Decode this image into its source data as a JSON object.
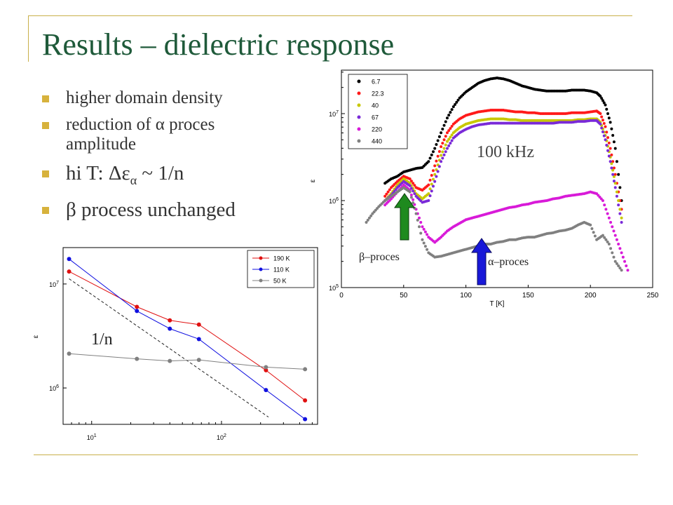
{
  "slide": {
    "title": "Results – dielectric response",
    "bullets": [
      {
        "lines": [
          "higher domain density"
        ]
      },
      {
        "lines": [
          "reduction of α proces",
          "amplitude"
        ]
      },
      {
        "lines": [
          "hi T: Δε",
          " ~ 1/n"
        ],
        "sub": "α"
      },
      {
        "lines": [
          "β process unchanged"
        ]
      }
    ]
  },
  "annotations": {
    "freq": "100 kHz",
    "beta": "β–proces",
    "alpha": "α–proces",
    "inv_n": "1/n"
  },
  "colors": {
    "title": "#1f5a3a",
    "bullet": "#d7b23c",
    "rule": "#c8b04a",
    "beta_arrow": "#1e8a1e",
    "alpha_arrow": "#1818d8"
  },
  "chart_data": [
    {
      "type": "scatter",
      "title": "",
      "xlabel": "T [K]",
      "ylabel": "ε",
      "xlim": [
        0,
        250
      ],
      "ylim_log10": [
        5,
        7.5
      ],
      "xticks": [
        "0",
        "50",
        "100",
        "150",
        "200",
        "250"
      ],
      "yticks": [
        {
          "label": "10",
          "exp": "5",
          "value": 5
        },
        {
          "label": "10",
          "exp": "6",
          "value": 6
        },
        {
          "label": "10",
          "exp": "7",
          "value": 7
        }
      ],
      "legend_position": "top-left",
      "series": [
        {
          "name": "6.7",
          "color": "#000000",
          "x": [
            35,
            40,
            45,
            50,
            55,
            60,
            65,
            70,
            75,
            80,
            85,
            90,
            95,
            100,
            105,
            110,
            115,
            120,
            125,
            130,
            135,
            140,
            145,
            150,
            155,
            160,
            165,
            170,
            175,
            180,
            185,
            190,
            195,
            200,
            205,
            208,
            212,
            216,
            220,
            225
          ],
          "log10": [
            6.2,
            6.25,
            6.28,
            6.33,
            6.35,
            6.37,
            6.38,
            6.45,
            6.6,
            6.78,
            6.95,
            7.08,
            7.18,
            7.25,
            7.3,
            7.35,
            7.38,
            7.4,
            7.41,
            7.4,
            7.38,
            7.35,
            7.32,
            7.3,
            7.28,
            7.27,
            7.26,
            7.26,
            7.26,
            7.26,
            7.27,
            7.27,
            7.27,
            7.26,
            7.24,
            7.2,
            7.1,
            6.9,
            6.6,
            6.0
          ]
        },
        {
          "name": "22.3",
          "color": "#ff1a1a",
          "x": [
            35,
            40,
            45,
            50,
            55,
            60,
            65,
            70,
            75,
            80,
            85,
            90,
            95,
            100,
            105,
            110,
            115,
            120,
            125,
            130,
            135,
            140,
            145,
            150,
            155,
            160,
            165,
            170,
            175,
            180,
            185,
            190,
            195,
            200,
            205,
            208,
            212,
            216,
            220,
            225
          ],
          "log10": [
            6.05,
            6.15,
            6.22,
            6.28,
            6.25,
            6.15,
            6.12,
            6.18,
            6.4,
            6.62,
            6.78,
            6.88,
            6.94,
            6.98,
            7.0,
            7.02,
            7.03,
            7.04,
            7.04,
            7.04,
            7.03,
            7.02,
            7.02,
            7.01,
            7.01,
            7.0,
            7.0,
            7.0,
            7.0,
            7.0,
            7.01,
            7.01,
            7.01,
            7.02,
            7.03,
            7.0,
            6.85,
            6.6,
            6.3,
            5.9
          ]
        },
        {
          "name": "40",
          "color": "#c8c800",
          "x": [
            35,
            40,
            45,
            50,
            55,
            60,
            65,
            70,
            75,
            80,
            85,
            90,
            95,
            100,
            105,
            110,
            115,
            120,
            125,
            130,
            135,
            140,
            145,
            150,
            155,
            160,
            165,
            170,
            175,
            180,
            185,
            190,
            195,
            200,
            205,
            208,
            212,
            216,
            220,
            225
          ],
          "log10": [
            6.0,
            6.08,
            6.18,
            6.25,
            6.2,
            6.08,
            6.02,
            6.08,
            6.3,
            6.52,
            6.68,
            6.78,
            6.84,
            6.88,
            6.9,
            6.92,
            6.93,
            6.94,
            6.94,
            6.94,
            6.93,
            6.93,
            6.92,
            6.92,
            6.92,
            6.92,
            6.92,
            6.92,
            6.92,
            6.92,
            6.92,
            6.93,
            6.93,
            6.94,
            6.94,
            6.9,
            6.75,
            6.5,
            6.2,
            5.8
          ]
        },
        {
          "name": "67",
          "color": "#7a2ad8",
          "x": [
            35,
            40,
            45,
            50,
            55,
            60,
            65,
            70,
            75,
            80,
            85,
            90,
            95,
            100,
            105,
            110,
            115,
            120,
            125,
            130,
            135,
            140,
            145,
            150,
            155,
            160,
            165,
            170,
            175,
            180,
            185,
            190,
            195,
            200,
            205,
            208,
            212,
            216,
            220,
            225
          ],
          "log10": [
            6.0,
            6.06,
            6.15,
            6.22,
            6.17,
            6.05,
            5.98,
            6.0,
            6.22,
            6.45,
            6.6,
            6.72,
            6.78,
            6.82,
            6.85,
            6.87,
            6.88,
            6.89,
            6.89,
            6.89,
            6.89,
            6.89,
            6.89,
            6.89,
            6.89,
            6.89,
            6.89,
            6.89,
            6.9,
            6.9,
            6.9,
            6.91,
            6.91,
            6.92,
            6.92,
            6.88,
            6.7,
            6.45,
            6.15,
            5.75
          ]
        },
        {
          "name": "220",
          "color": "#d81ad8",
          "x": [
            35,
            40,
            45,
            50,
            55,
            60,
            65,
            70,
            75,
            80,
            85,
            90,
            95,
            100,
            105,
            110,
            115,
            120,
            125,
            130,
            135,
            140,
            145,
            150,
            155,
            160,
            165,
            170,
            175,
            180,
            185,
            190,
            195,
            200,
            205,
            210,
            215,
            220,
            225,
            230
          ],
          "log10": [
            5.95,
            6.02,
            6.1,
            6.18,
            6.12,
            5.9,
            5.7,
            5.58,
            5.52,
            5.58,
            5.65,
            5.7,
            5.74,
            5.78,
            5.8,
            5.82,
            5.84,
            5.86,
            5.88,
            5.9,
            5.92,
            5.93,
            5.95,
            5.96,
            5.98,
            5.99,
            6.0,
            6.02,
            6.03,
            6.05,
            6.06,
            6.07,
            6.08,
            6.1,
            6.08,
            6.0,
            5.8,
            5.6,
            5.4,
            5.2
          ]
        },
        {
          "name": "440",
          "color": "#808080",
          "x": [
            20,
            25,
            30,
            35,
            40,
            45,
            50,
            55,
            60,
            65,
            70,
            75,
            80,
            85,
            90,
            95,
            100,
            105,
            110,
            115,
            120,
            125,
            130,
            135,
            140,
            145,
            150,
            155,
            160,
            165,
            170,
            175,
            180,
            185,
            190,
            195,
            200,
            205,
            210,
            215,
            220,
            225
          ],
          "log10": [
            5.75,
            5.85,
            5.93,
            6.0,
            6.05,
            6.1,
            6.15,
            6.1,
            5.85,
            5.55,
            5.4,
            5.35,
            5.36,
            5.38,
            5.4,
            5.42,
            5.44,
            5.46,
            5.48,
            5.5,
            5.5,
            5.52,
            5.53,
            5.55,
            5.55,
            5.57,
            5.58,
            5.58,
            5.6,
            5.62,
            5.63,
            5.65,
            5.66,
            5.68,
            5.72,
            5.75,
            5.72,
            5.55,
            5.6,
            5.5,
            5.3,
            5.2
          ]
        }
      ]
    },
    {
      "type": "line",
      "title": "",
      "xlabel": "",
      "ylabel": "ε",
      "xlim_log10": [
        0.78,
        2.74
      ],
      "ylim_log10": [
        5.65,
        7.35
      ],
      "xticks": [
        {
          "label": "10",
          "exp": "1",
          "value": 1
        },
        {
          "label": "10",
          "exp": "2",
          "value": 2
        }
      ],
      "yticks": [
        {
          "label": "10",
          "exp": "6",
          "value": 6
        },
        {
          "label": "10",
          "exp": "7",
          "value": 7
        }
      ],
      "legend_position": "top-right",
      "series": [
        {
          "name": "190 K",
          "color": "#e01010",
          "x": [
            6.7,
            22.3,
            40,
            67,
            220,
            440
          ],
          "log10": [
            7.12,
            6.78,
            6.65,
            6.61,
            6.17,
            5.88
          ]
        },
        {
          "name": "110 K",
          "color": "#1010e0",
          "x": [
            6.7,
            22.3,
            40,
            67,
            220,
            440
          ],
          "log10": [
            7.24,
            6.74,
            6.57,
            6.47,
            5.98,
            5.7
          ]
        },
        {
          "name": "50 K",
          "color": "#808080",
          "x": [
            6.7,
            22.3,
            40,
            67,
            220,
            440
          ],
          "log10": [
            6.33,
            6.28,
            6.26,
            6.27,
            6.2,
            6.18
          ]
        }
      ],
      "reference_line": {
        "label": "1/n",
        "x": [
          6.7,
          230
        ],
        "log10": [
          7.05,
          5.72
        ]
      }
    }
  ]
}
